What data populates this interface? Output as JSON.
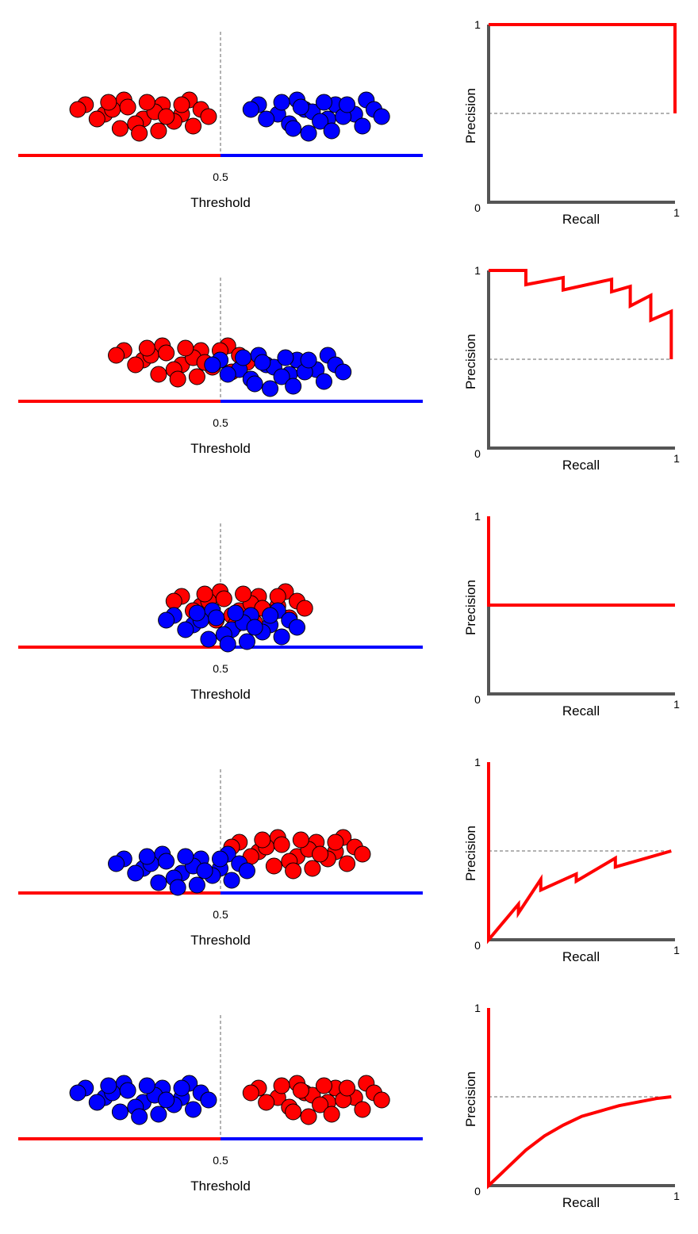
{
  "colors": {
    "positive": "#ff0000",
    "negative": "#0000ff",
    "axis": "#555555",
    "curve": "#ff0000",
    "guide": "#666666"
  },
  "chart_data": [
    {
      "type": "scatter",
      "xlabel": "Threshold",
      "threshold": 0.5,
      "threshold_tick": "0.5",
      "red_points": [
        [
          0.15,
          0.8
        ],
        [
          0.2,
          0.6
        ],
        [
          0.25,
          0.9
        ],
        [
          0.22,
          0.7
        ],
        [
          0.3,
          0.5
        ],
        [
          0.35,
          0.8
        ],
        [
          0.28,
          0.4
        ],
        [
          0.4,
          0.6
        ],
        [
          0.42,
          0.9
        ],
        [
          0.45,
          0.7
        ],
        [
          0.33,
          0.65
        ],
        [
          0.38,
          0.45
        ],
        [
          0.18,
          0.5
        ],
        [
          0.26,
          0.75
        ],
        [
          0.36,
          0.55
        ],
        [
          0.43,
          0.35
        ],
        [
          0.31,
          0.85
        ],
        [
          0.24,
          0.3
        ],
        [
          0.4,
          0.8
        ],
        [
          0.29,
          0.2
        ],
        [
          0.34,
          0.25
        ],
        [
          0.21,
          0.85
        ],
        [
          0.47,
          0.55
        ],
        [
          0.13,
          0.7
        ]
      ],
      "blue_points": [
        [
          0.6,
          0.8
        ],
        [
          0.65,
          0.6
        ],
        [
          0.7,
          0.9
        ],
        [
          0.72,
          0.7
        ],
        [
          0.78,
          0.5
        ],
        [
          0.8,
          0.8
        ],
        [
          0.68,
          0.4
        ],
        [
          0.85,
          0.6
        ],
        [
          0.88,
          0.9
        ],
        [
          0.9,
          0.7
        ],
        [
          0.74,
          0.65
        ],
        [
          0.76,
          0.45
        ],
        [
          0.62,
          0.5
        ],
        [
          0.71,
          0.75
        ],
        [
          0.82,
          0.55
        ],
        [
          0.87,
          0.35
        ],
        [
          0.77,
          0.85
        ],
        [
          0.69,
          0.3
        ],
        [
          0.83,
          0.8
        ],
        [
          0.73,
          0.2
        ],
        [
          0.79,
          0.25
        ],
        [
          0.66,
          0.85
        ],
        [
          0.92,
          0.55
        ],
        [
          0.58,
          0.7
        ]
      ],
      "pr_curve": {
        "xlabel": "Recall",
        "ylabel": "Precision",
        "tick_labels": {
          "y_top": "1",
          "origin": "0",
          "x_right": "1"
        },
        "baseline": 0.5,
        "points": [
          [
            0,
            1
          ],
          [
            1,
            1
          ],
          [
            1,
            0.5
          ]
        ]
      }
    },
    {
      "type": "scatter",
      "xlabel": "Threshold",
      "threshold": 0.5,
      "threshold_tick": "0.5",
      "red_points": [
        [
          0.25,
          0.8
        ],
        [
          0.3,
          0.6
        ],
        [
          0.35,
          0.9
        ],
        [
          0.32,
          0.7
        ],
        [
          0.4,
          0.5
        ],
        [
          0.45,
          0.8
        ],
        [
          0.38,
          0.4
        ],
        [
          0.5,
          0.6
        ],
        [
          0.52,
          0.9
        ],
        [
          0.55,
          0.7
        ],
        [
          0.43,
          0.65
        ],
        [
          0.48,
          0.45
        ],
        [
          0.28,
          0.5
        ],
        [
          0.36,
          0.75
        ],
        [
          0.46,
          0.55
        ],
        [
          0.53,
          0.35
        ],
        [
          0.41,
          0.85
        ],
        [
          0.34,
          0.3
        ],
        [
          0.5,
          0.8
        ],
        [
          0.39,
          0.2
        ],
        [
          0.44,
          0.25
        ],
        [
          0.31,
          0.85
        ],
        [
          0.57,
          0.55
        ],
        [
          0.23,
          0.7
        ]
      ],
      "blue_points": [
        [
          0.5,
          0.6
        ],
        [
          0.55,
          0.4
        ],
        [
          0.6,
          0.7
        ],
        [
          0.62,
          0.5
        ],
        [
          0.68,
          0.3
        ],
        [
          0.7,
          0.6
        ],
        [
          0.58,
          0.2
        ],
        [
          0.75,
          0.4
        ],
        [
          0.78,
          0.7
        ],
        [
          0.8,
          0.5
        ],
        [
          0.64,
          0.45
        ],
        [
          0.66,
          0.25
        ],
        [
          0.52,
          0.3
        ],
        [
          0.61,
          0.55
        ],
        [
          0.72,
          0.35
        ],
        [
          0.77,
          0.15
        ],
        [
          0.67,
          0.65
        ],
        [
          0.59,
          0.1
        ],
        [
          0.73,
          0.6
        ],
        [
          0.63,
          0.0
        ],
        [
          0.69,
          0.05
        ],
        [
          0.56,
          0.65
        ],
        [
          0.82,
          0.35
        ],
        [
          0.48,
          0.5
        ]
      ],
      "pr_curve": {
        "xlabel": "Recall",
        "ylabel": "Precision",
        "tick_labels": {
          "y_top": "1",
          "origin": "0",
          "x_right": "1"
        },
        "baseline": 0.5,
        "points": [
          [
            0,
            1
          ],
          [
            0.2,
            1
          ],
          [
            0.2,
            0.92
          ],
          [
            0.4,
            0.96
          ],
          [
            0.4,
            0.89
          ],
          [
            0.66,
            0.95
          ],
          [
            0.66,
            0.88
          ],
          [
            0.76,
            0.91
          ],
          [
            0.76,
            0.8
          ],
          [
            0.87,
            0.86
          ],
          [
            0.87,
            0.72
          ],
          [
            0.98,
            0.77
          ],
          [
            0.98,
            0.5
          ]
        ]
      }
    },
    {
      "type": "scatter",
      "xlabel": "Threshold",
      "threshold": 0.5,
      "threshold_tick": "0.5",
      "red_points": [
        [
          0.4,
          0.8
        ],
        [
          0.45,
          0.6
        ],
        [
          0.5,
          0.9
        ],
        [
          0.47,
          0.7
        ],
        [
          0.55,
          0.5
        ],
        [
          0.6,
          0.8
        ],
        [
          0.53,
          0.4
        ],
        [
          0.65,
          0.6
        ],
        [
          0.67,
          0.9
        ],
        [
          0.7,
          0.7
        ],
        [
          0.58,
          0.65
        ],
        [
          0.63,
          0.45
        ],
        [
          0.43,
          0.5
        ],
        [
          0.51,
          0.75
        ],
        [
          0.61,
          0.55
        ],
        [
          0.68,
          0.35
        ],
        [
          0.56,
          0.85
        ],
        [
          0.49,
          0.3
        ],
        [
          0.65,
          0.8
        ],
        [
          0.54,
          0.2
        ],
        [
          0.59,
          0.25
        ],
        [
          0.46,
          0.85
        ],
        [
          0.72,
          0.55
        ],
        [
          0.38,
          0.7
        ]
      ],
      "blue_points": [
        [
          0.38,
          0.4
        ],
        [
          0.43,
          0.2
        ],
        [
          0.48,
          0.5
        ],
        [
          0.45,
          0.3
        ],
        [
          0.53,
          0.1
        ],
        [
          0.58,
          0.4
        ],
        [
          0.51,
          0.0
        ],
        [
          0.63,
          0.2
        ],
        [
          0.65,
          0.5
        ],
        [
          0.68,
          0.3
        ],
        [
          0.56,
          0.25
        ],
        [
          0.61,
          0.05
        ],
        [
          0.41,
          0.1
        ],
        [
          0.49,
          0.35
        ],
        [
          0.59,
          0.15
        ],
        [
          0.66,
          -0.05
        ],
        [
          0.54,
          0.45
        ],
        [
          0.47,
          -0.1
        ],
        [
          0.63,
          0.4
        ],
        [
          0.52,
          -0.2
        ],
        [
          0.57,
          -0.15
        ],
        [
          0.44,
          0.45
        ],
        [
          0.7,
          0.15
        ],
        [
          0.36,
          0.3
        ]
      ],
      "pr_curve": {
        "xlabel": "Recall",
        "ylabel": "Precision",
        "tick_labels": {
          "y_top": "1",
          "origin": "0",
          "x_right": "1"
        },
        "baseline": 0.5,
        "points": [
          [
            0,
            1
          ],
          [
            0,
            0.5
          ],
          [
            1,
            0.5
          ]
        ]
      }
    },
    {
      "type": "scatter",
      "xlabel": "Threshold",
      "threshold": 0.5,
      "threshold_tick": "0.5",
      "red_points": [
        [
          0.55,
          0.8
        ],
        [
          0.6,
          0.6
        ],
        [
          0.65,
          0.9
        ],
        [
          0.62,
          0.7
        ],
        [
          0.7,
          0.5
        ],
        [
          0.75,
          0.8
        ],
        [
          0.68,
          0.4
        ],
        [
          0.8,
          0.6
        ],
        [
          0.82,
          0.9
        ],
        [
          0.85,
          0.7
        ],
        [
          0.73,
          0.65
        ],
        [
          0.78,
          0.45
        ],
        [
          0.58,
          0.5
        ],
        [
          0.66,
          0.75
        ],
        [
          0.76,
          0.55
        ],
        [
          0.83,
          0.35
        ],
        [
          0.71,
          0.85
        ],
        [
          0.64,
          0.3
        ],
        [
          0.8,
          0.8
        ],
        [
          0.69,
          0.2
        ],
        [
          0.74,
          0.25
        ],
        [
          0.61,
          0.85
        ],
        [
          0.87,
          0.55
        ],
        [
          0.53,
          0.7
        ]
      ],
      "blue_points": [
        [
          0.25,
          0.45
        ],
        [
          0.3,
          0.25
        ],
        [
          0.35,
          0.55
        ],
        [
          0.32,
          0.35
        ],
        [
          0.4,
          0.15
        ],
        [
          0.45,
          0.45
        ],
        [
          0.38,
          0.05
        ],
        [
          0.5,
          0.25
        ],
        [
          0.52,
          0.55
        ],
        [
          0.55,
          0.35
        ],
        [
          0.43,
          0.3
        ],
        [
          0.48,
          0.1
        ],
        [
          0.28,
          0.15
        ],
        [
          0.36,
          0.4
        ],
        [
          0.46,
          0.2
        ],
        [
          0.53,
          0.0
        ],
        [
          0.41,
          0.5
        ],
        [
          0.34,
          -0.05
        ],
        [
          0.5,
          0.45
        ],
        [
          0.39,
          -0.15
        ],
        [
          0.44,
          -0.1
        ],
        [
          0.31,
          0.5
        ],
        [
          0.57,
          0.2
        ],
        [
          0.23,
          0.35
        ]
      ],
      "pr_curve": {
        "xlabel": "Recall",
        "ylabel": "Precision",
        "tick_labels": {
          "y_top": "1",
          "origin": "0",
          "x_right": "1"
        },
        "baseline": 0.5,
        "points": [
          [
            0,
            1
          ],
          [
            0,
            0
          ],
          [
            0.16,
            0.2
          ],
          [
            0.16,
            0.15
          ],
          [
            0.28,
            0.34
          ],
          [
            0.28,
            0.28
          ],
          [
            0.47,
            0.37
          ],
          [
            0.47,
            0.33
          ],
          [
            0.68,
            0.46
          ],
          [
            0.68,
            0.41
          ],
          [
            0.98,
            0.5
          ]
        ]
      }
    },
    {
      "type": "scatter",
      "xlabel": "Threshold",
      "threshold": 0.5,
      "threshold_tick": "0.5",
      "red_points": [
        [
          0.6,
          0.8
        ],
        [
          0.65,
          0.6
        ],
        [
          0.7,
          0.9
        ],
        [
          0.72,
          0.7
        ],
        [
          0.78,
          0.5
        ],
        [
          0.8,
          0.8
        ],
        [
          0.68,
          0.4
        ],
        [
          0.85,
          0.6
        ],
        [
          0.88,
          0.9
        ],
        [
          0.9,
          0.7
        ],
        [
          0.74,
          0.65
        ],
        [
          0.76,
          0.45
        ],
        [
          0.62,
          0.5
        ],
        [
          0.71,
          0.75
        ],
        [
          0.82,
          0.55
        ],
        [
          0.87,
          0.35
        ],
        [
          0.77,
          0.85
        ],
        [
          0.69,
          0.3
        ],
        [
          0.83,
          0.8
        ],
        [
          0.73,
          0.2
        ],
        [
          0.79,
          0.25
        ],
        [
          0.66,
          0.85
        ],
        [
          0.92,
          0.55
        ],
        [
          0.58,
          0.7
        ]
      ],
      "blue_points": [
        [
          0.15,
          0.8
        ],
        [
          0.2,
          0.6
        ],
        [
          0.25,
          0.9
        ],
        [
          0.22,
          0.7
        ],
        [
          0.3,
          0.5
        ],
        [
          0.35,
          0.8
        ],
        [
          0.28,
          0.4
        ],
        [
          0.4,
          0.6
        ],
        [
          0.42,
          0.9
        ],
        [
          0.45,
          0.7
        ],
        [
          0.33,
          0.65
        ],
        [
          0.38,
          0.45
        ],
        [
          0.18,
          0.5
        ],
        [
          0.26,
          0.75
        ],
        [
          0.36,
          0.55
        ],
        [
          0.43,
          0.35
        ],
        [
          0.31,
          0.85
        ],
        [
          0.24,
          0.3
        ],
        [
          0.4,
          0.8
        ],
        [
          0.29,
          0.2
        ],
        [
          0.34,
          0.25
        ],
        [
          0.21,
          0.85
        ],
        [
          0.47,
          0.55
        ],
        [
          0.13,
          0.7
        ]
      ],
      "pr_curve": {
        "xlabel": "Recall",
        "ylabel": "Precision",
        "tick_labels": {
          "y_top": "1",
          "origin": "0",
          "x_right": "1"
        },
        "baseline": 0.5,
        "points": [
          [
            0,
            1
          ],
          [
            0,
            0
          ],
          [
            0.1,
            0.1
          ],
          [
            0.2,
            0.2
          ],
          [
            0.3,
            0.28
          ],
          [
            0.4,
            0.34
          ],
          [
            0.5,
            0.39
          ],
          [
            0.6,
            0.42
          ],
          [
            0.7,
            0.45
          ],
          [
            0.8,
            0.47
          ],
          [
            0.9,
            0.49
          ],
          [
            0.98,
            0.5
          ]
        ]
      }
    }
  ]
}
